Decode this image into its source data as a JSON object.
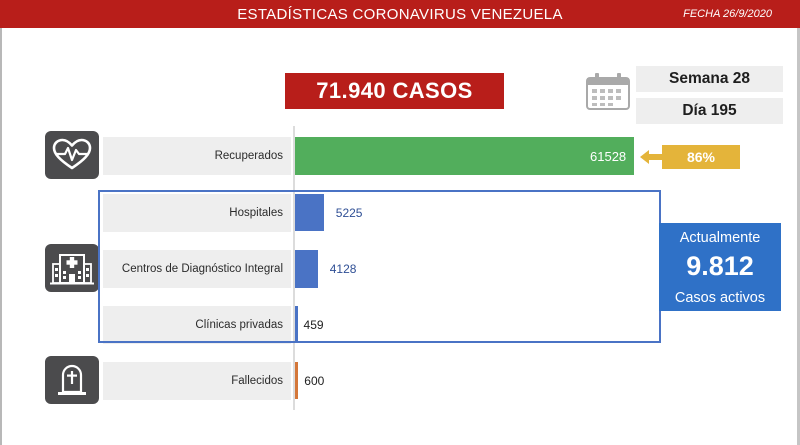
{
  "header": {
    "title": "ESTADÍSTICAS CORONAVIRUS VENEZUELA",
    "date": "FECHA 26/9/2020"
  },
  "summary": {
    "total_cases": "71.940 CASOS",
    "week": "Semana 28",
    "day": "Día 195"
  },
  "recovered_percent": "86%",
  "active": {
    "label_top": "Actualmente",
    "value": "9.812",
    "label_bottom": "Casos activos"
  },
  "icons": {
    "recovered": "heart-pulse-icon",
    "hospitals": "hospital-building-icon",
    "deaths": "tombstone-icon",
    "calendar": "calendar-icon"
  },
  "colors": {
    "header": "#b81e1a",
    "recovered": "#52ae5c",
    "hospital_group": "#4a73c5",
    "deaths": "#d4773a",
    "percent_tag": "#e4b43a",
    "active_box": "#2f71c7"
  },
  "chart_data": {
    "type": "bar",
    "orientation": "horizontal",
    "categories": [
      "Recuperados",
      "Hospitales",
      "Centros de Diagnóstico Integral",
      "Clínicas privadas",
      "Fallecidos"
    ],
    "values": [
      61528,
      5225,
      4128,
      459,
      600
    ],
    "value_labels": [
      "61528",
      "5225",
      "4128",
      "459",
      "600"
    ],
    "bar_colors": [
      "#52ae5c",
      "#4a73c5",
      "#4a73c5",
      "#4a73c5",
      "#d4773a"
    ],
    "xlim": [
      0,
      61528
    ]
  }
}
